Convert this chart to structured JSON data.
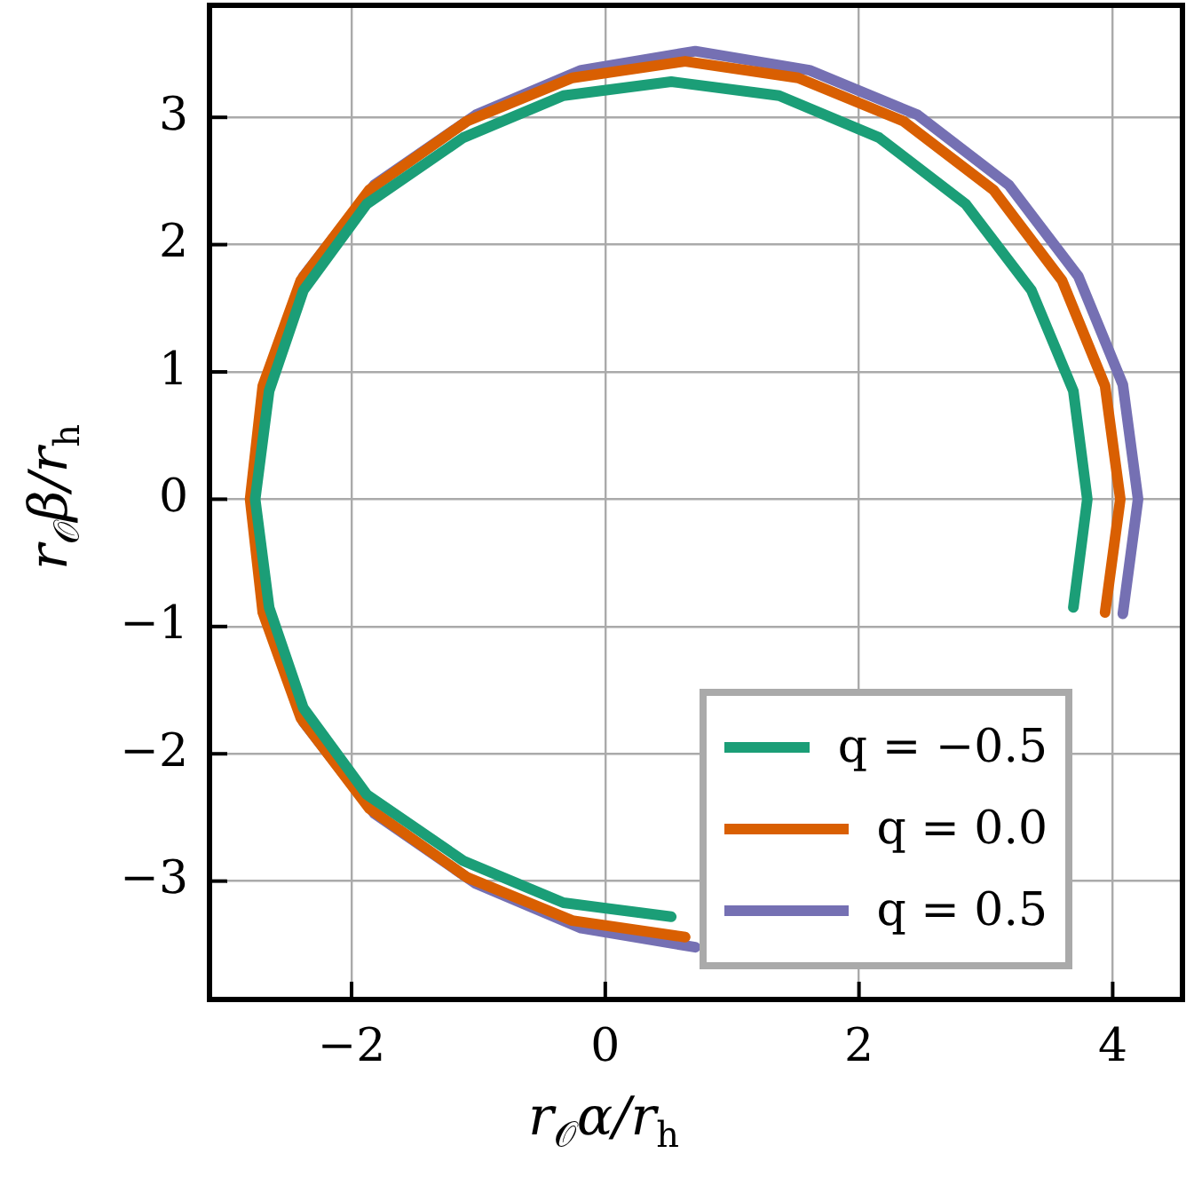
{
  "chart_data": {
    "type": "line",
    "xlabel": "r$_{𝒪}$α/r$_{h}$",
    "ylabel": "r$_{𝒪}$β/r$_{h}$",
    "xlim": [
      -3.12,
      4.55
    ],
    "ylim": [
      -3.93,
      3.88
    ],
    "xticks": [
      -2,
      0,
      2,
      4
    ],
    "yticks": [
      -3,
      -2,
      -1,
      0,
      1,
      2,
      3
    ],
    "grid": true,
    "legend": "bottom right",
    "marker": "none",
    "line_style": "solid",
    "series": [
      {
        "name": "q = −0.5",
        "color": "#1b9e77",
        "x": [
          3.8,
          3.69,
          3.36,
          2.84,
          2.16,
          1.37,
          0.52,
          -0.33,
          -1.12,
          -1.88,
          -2.38,
          -2.65,
          -2.76,
          -2.65,
          -2.38,
          -1.88,
          -1.12,
          -0.33,
          0.52,
          1.37,
          2.16,
          2.84,
          3.36,
          3.69,
          3.8
        ],
        "values": [
          0,
          0.85,
          1.64,
          2.32,
          2.84,
          3.17,
          3.28,
          3.17,
          2.84,
          2.32,
          1.64,
          0.85,
          0,
          -0.85,
          -1.64,
          -2.32,
          -2.84,
          -3.17,
          -3.28,
          null,
          null,
          null,
          null,
          -0.85,
          0
        ]
      },
      {
        "name": "q = 0.0",
        "color": "#d95f02",
        "x": [
          4.06,
          3.94,
          3.6,
          3.06,
          2.35,
          1.52,
          0.63,
          -0.26,
          -1.09,
          -1.86,
          -2.4,
          -2.7,
          -2.8,
          -2.7,
          -2.4,
          -1.86,
          -1.09,
          -0.26,
          0.63,
          1.52,
          2.35,
          3.06,
          3.6,
          3.94,
          4.06
        ],
        "values": [
          0,
          0.89,
          1.72,
          2.43,
          2.97,
          3.31,
          3.44,
          3.31,
          2.97,
          2.43,
          1.72,
          0.89,
          0,
          -0.89,
          -1.72,
          -2.43,
          -2.97,
          -3.31,
          -3.44,
          null,
          null,
          null,
          null,
          -0.89,
          0
        ]
      },
      {
        "name": "q = 0.5",
        "color": "#7570b3",
        "x": [
          4.2,
          4.08,
          3.73,
          3.18,
          2.46,
          1.61,
          0.71,
          -0.19,
          -1.02,
          -1.82,
          -2.38,
          -2.68,
          -2.78,
          -2.68,
          -2.38,
          -1.82,
          -1.02,
          -0.19,
          0.71,
          1.61,
          2.46,
          3.18,
          3.73,
          4.08,
          4.2
        ],
        "values": [
          0,
          0.9,
          1.75,
          2.47,
          3.02,
          3.37,
          3.52,
          3.37,
          3.02,
          2.47,
          1.75,
          0.9,
          0,
          -0.9,
          -1.75,
          -2.47,
          -3.02,
          -3.37,
          -3.52,
          null,
          null,
          null,
          null,
          -0.9,
          0
        ]
      }
    ]
  }
}
